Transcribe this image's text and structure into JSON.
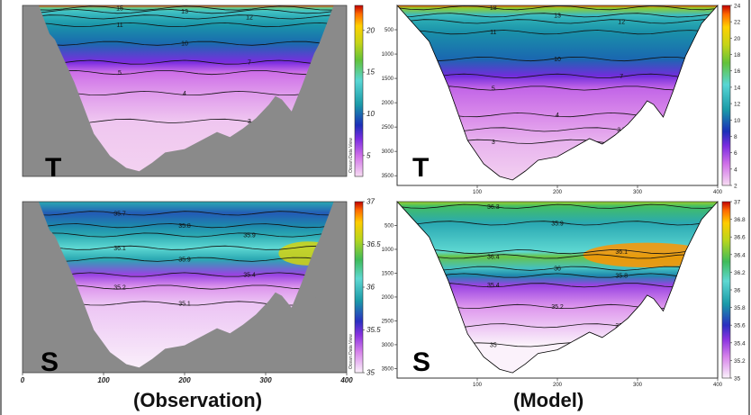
{
  "figure": {
    "captions": [
      "(Observation)",
      "(Model)"
    ]
  },
  "chart_data": [
    {
      "type": "heatmap",
      "name": "obs-temperature",
      "panel_letter": "T",
      "colorbar": {
        "ticks": [
          "20",
          "15",
          "10",
          "5"
        ],
        "tick_values": [
          20,
          15,
          10,
          5
        ],
        "range": [
          2.5,
          23
        ],
        "side_label": "Ocean Data View"
      },
      "xlim": [
        0,
        400
      ],
      "ylim": [
        3700,
        0
      ],
      "x_ticks": [],
      "y_ticks": [],
      "contours": [
        {
          "label": "15",
          "depth": 60,
          "value": 15
        },
        {
          "label": "13",
          "depth": 130,
          "value": 13
        },
        {
          "label": "12",
          "depth": 250,
          "value": 12
        },
        {
          "label": "11",
          "depth": 420,
          "value": 11
        },
        {
          "label": "10",
          "depth": 820,
          "value": 10
        },
        {
          "label": "7",
          "depth": 1230,
          "value": 7
        },
        {
          "label": "5",
          "depth": 1450,
          "value": 5
        },
        {
          "label": "4",
          "depth": 1900,
          "value": 4
        },
        {
          "label": "3",
          "depth": 2500,
          "value": 3
        }
      ]
    },
    {
      "type": "heatmap",
      "name": "model-temperature",
      "panel_letter": "T",
      "colorbar": {
        "ticks": [
          "24",
          "22",
          "20",
          "18",
          "16",
          "14",
          "12",
          "10",
          "8",
          "6",
          "4",
          "2"
        ],
        "tick_values": [
          24,
          22,
          20,
          18,
          16,
          14,
          12,
          10,
          8,
          6,
          4,
          2
        ],
        "range": [
          2,
          24
        ]
      },
      "xlim": [
        0,
        400
      ],
      "ylim": [
        3700,
        0
      ],
      "x_ticks": [
        "100",
        "200",
        "300",
        "400"
      ],
      "x_tick_values": [
        100,
        200,
        300,
        400
      ],
      "y_ticks": [
        "500",
        "1000",
        "1500",
        "2000",
        "2500",
        "3000",
        "3500"
      ],
      "y_tick_values": [
        500,
        1000,
        1500,
        2000,
        2500,
        3000,
        3500
      ],
      "contours": [
        {
          "label": "18",
          "depth": 50,
          "value": 18
        },
        {
          "label": "13",
          "depth": 200,
          "value": 13
        },
        {
          "label": "12",
          "depth": 330,
          "value": 12
        },
        {
          "label": "11",
          "depth": 550,
          "value": 11
        },
        {
          "label": "10",
          "depth": 1100,
          "value": 10
        },
        {
          "label": "7",
          "depth": 1450,
          "value": 7
        },
        {
          "label": "5",
          "depth": 1700,
          "value": 5
        },
        {
          "label": "4",
          "depth": 2250,
          "value": 4
        },
        {
          "label": "3.5",
          "depth": 2550,
          "value": 3.5
        },
        {
          "label": "3",
          "depth": 2800,
          "value": 3
        }
      ]
    },
    {
      "type": "heatmap",
      "name": "obs-salinity",
      "panel_letter": "S",
      "colorbar": {
        "ticks": [
          "37",
          "36.5",
          "36",
          "35.5",
          "35"
        ],
        "tick_values": [
          37,
          36.5,
          36,
          35.5,
          35
        ],
        "range": [
          35,
          37
        ],
        "side_label": "Ocean Data View"
      },
      "xlim": [
        0,
        400
      ],
      "ylim": [
        3700,
        0
      ],
      "x_ticks": [
        "0",
        "100",
        "200",
        "300",
        "400"
      ],
      "x_tick_values": [
        0,
        100,
        200,
        300,
        400
      ],
      "y_ticks": [],
      "contours": [
        {
          "label": "35.7",
          "depth": 250,
          "value": 35.7
        },
        {
          "label": "35.8",
          "depth": 520,
          "value": 35.8
        },
        {
          "label": "35.9",
          "depth": 720,
          "value": 35.9
        },
        {
          "label": "36.1",
          "depth": 1000,
          "value": 36.1
        },
        {
          "label": "35.9",
          "depth": 1250,
          "value": 35.9
        },
        {
          "label": "35.4",
          "depth": 1580,
          "value": 35.4
        },
        {
          "label": "35.2",
          "depth": 1850,
          "value": 35.2
        },
        {
          "label": "35.1",
          "depth": 2200,
          "value": 35.1
        }
      ]
    },
    {
      "type": "heatmap",
      "name": "model-salinity",
      "panel_letter": "S",
      "colorbar": {
        "ticks": [
          "37",
          "36.8",
          "36.6",
          "36.4",
          "36.2",
          "36",
          "35.8",
          "35.6",
          "35.4",
          "35.2",
          "35"
        ],
        "tick_values": [
          37,
          36.8,
          36.6,
          36.4,
          36.2,
          36,
          35.8,
          35.6,
          35.4,
          35.2,
          35
        ],
        "range": [
          35,
          37
        ]
      },
      "xlim": [
        0,
        400
      ],
      "ylim": [
        3700,
        0
      ],
      "x_ticks": [
        "100",
        "200",
        "300",
        "400"
      ],
      "x_tick_values": [
        100,
        200,
        300,
        400
      ],
      "y_ticks": [
        "500",
        "1000",
        "1500",
        "2000",
        "2500",
        "3000",
        "3500"
      ],
      "y_tick_values": [
        500,
        1000,
        1500,
        2000,
        2500,
        3000,
        3500
      ],
      "contours": [
        {
          "label": "36.3",
          "depth": 100,
          "value": 36.3
        },
        {
          "label": "35.9",
          "depth": 450,
          "value": 35.9
        },
        {
          "label": "36.1",
          "depth": 1050,
          "value": 36.1
        },
        {
          "label": "36.4",
          "depth": 1150,
          "value": 36.4
        },
        {
          "label": "36",
          "depth": 1400,
          "value": 36
        },
        {
          "label": "35.8",
          "depth": 1550,
          "value": 35.8
        },
        {
          "label": "35.4",
          "depth": 1750,
          "value": 35.4
        },
        {
          "label": "35.2",
          "depth": 2200,
          "value": 35.2
        },
        {
          "label": "35.1",
          "depth": 2600,
          "value": 35.1
        },
        {
          "label": "35",
          "depth": 3000,
          "value": 35
        }
      ]
    }
  ]
}
